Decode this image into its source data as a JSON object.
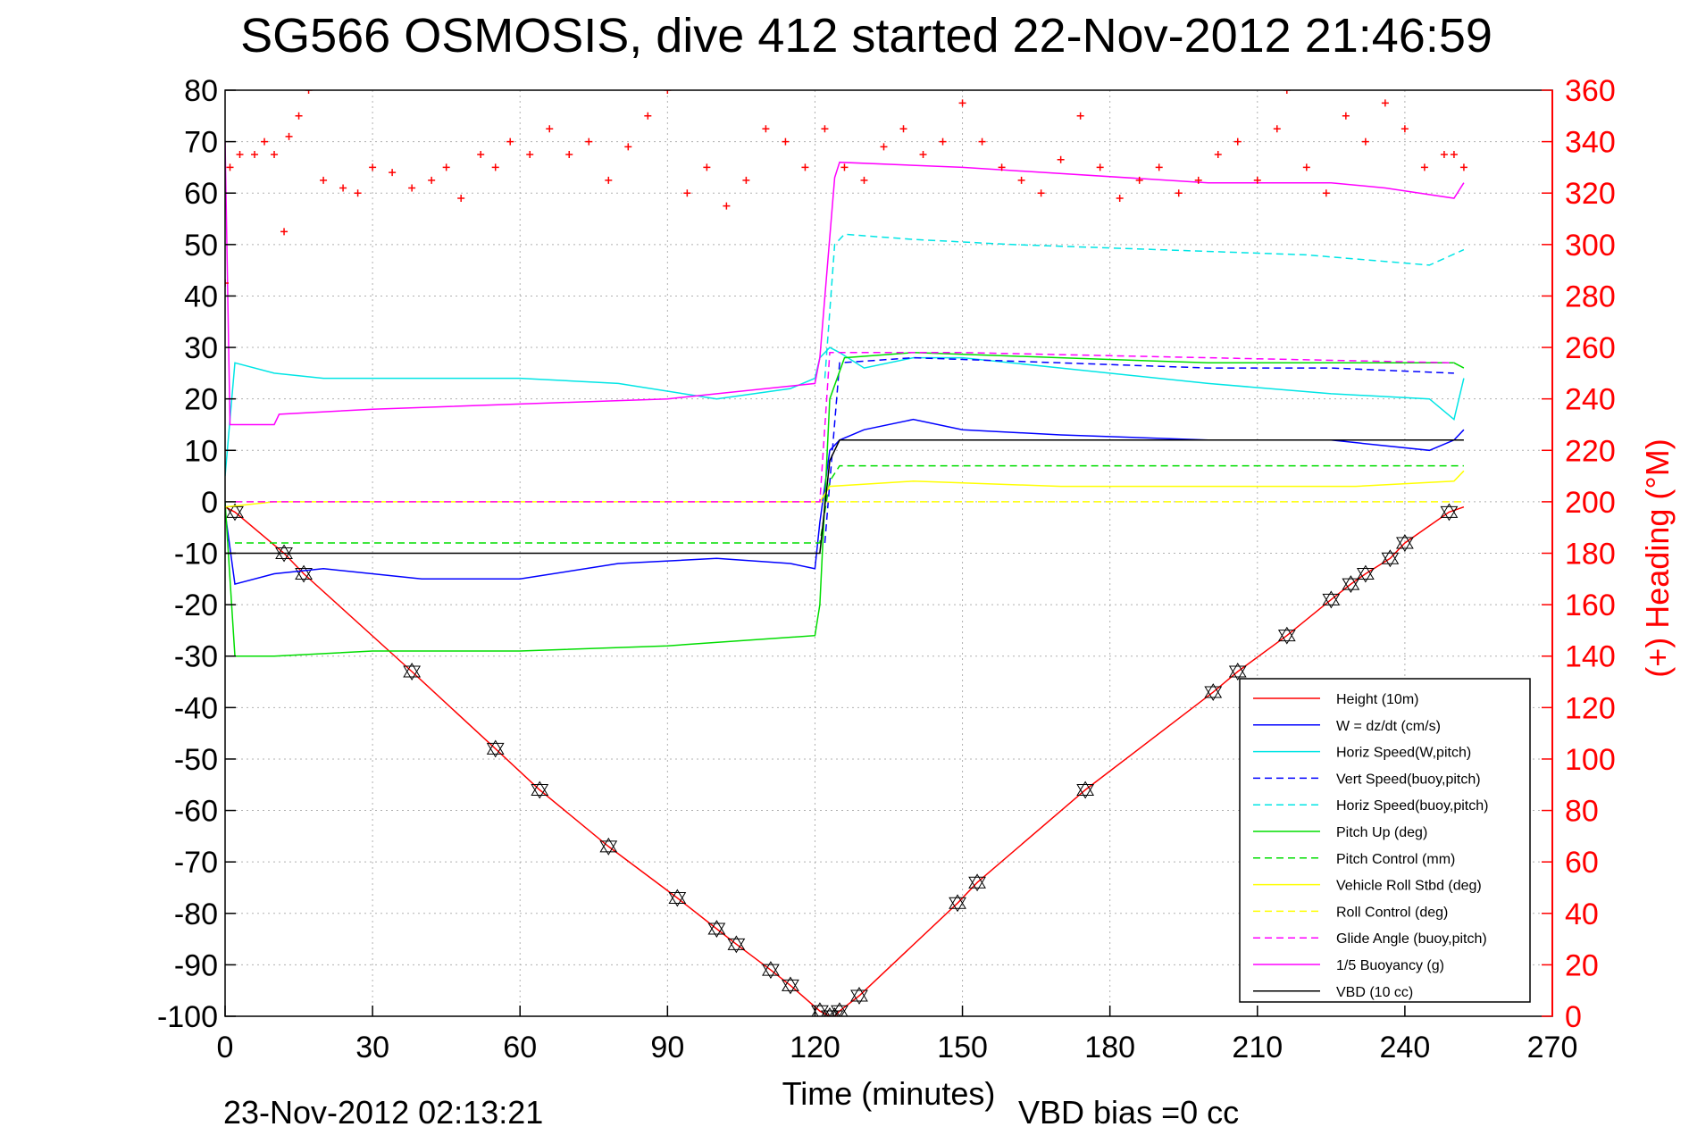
{
  "chart_data": {
    "type": "line",
    "title": "SG566 OSMOSIS, dive 412 started 22-Nov-2012 21:46:59",
    "xlabel": "Time (minutes)",
    "ylabel": "",
    "ylabel_right": "(+) Heading (°M)",
    "xlim": [
      0,
      270
    ],
    "ylim": [
      -100,
      80
    ],
    "ylim_right": [
      0,
      360
    ],
    "xticks": [
      0,
      30,
      60,
      90,
      120,
      150,
      180,
      210,
      240,
      270
    ],
    "yticks": [
      -100,
      -90,
      -80,
      -70,
      -60,
      -50,
      -40,
      -30,
      -20,
      -10,
      0,
      10,
      20,
      30,
      40,
      50,
      60,
      70,
      80
    ],
    "yticks_right": [
      0,
      20,
      40,
      60,
      80,
      100,
      120,
      140,
      160,
      180,
      200,
      220,
      240,
      260,
      280,
      300,
      320,
      340,
      360
    ],
    "grid": true,
    "legend_position": "lower-right",
    "footer_left": "23-Nov-2012 02:13:21",
    "footer_right": "VBD bias =0 cc",
    "series": [
      {
        "name": "Height (10m)",
        "color": "#ff0000",
        "style": "solid",
        "x": [
          0,
          2,
          12,
          16,
          38,
          55,
          64,
          78,
          92,
          100,
          104,
          111,
          115,
          121,
          123,
          124,
          125,
          129,
          149,
          153,
          175,
          201,
          206,
          216,
          225,
          229,
          232,
          237,
          240,
          249,
          252
        ],
        "y": [
          -1,
          -2,
          -10,
          -14,
          -33,
          -48,
          -56,
          -67,
          -77,
          -83,
          -86,
          -91,
          -94,
          -99,
          -100,
          -100,
          -99,
          -96,
          -78,
          -74,
          -56,
          -37,
          -33,
          -26,
          -19,
          -16,
          -14,
          -11,
          -8,
          -2,
          -1
        ]
      },
      {
        "name": "W = dz/dt (cm/s)",
        "color": "#0000ff",
        "style": "solid",
        "x": [
          0,
          2,
          10,
          20,
          40,
          60,
          80,
          100,
          115,
          120,
          121,
          123,
          125,
          130,
          140,
          150,
          170,
          200,
          225,
          245,
          250,
          252
        ],
        "y": [
          -2,
          -16,
          -14,
          -13,
          -15,
          -15,
          -12,
          -11,
          -12,
          -13,
          -4,
          10,
          12,
          14,
          16,
          14,
          13,
          12,
          12,
          10,
          12,
          14
        ]
      },
      {
        "name": "Horiz Speed(W,pitch)",
        "color": "#00e5e5",
        "style": "solid",
        "x": [
          0,
          2,
          10,
          20,
          40,
          60,
          80,
          100,
          115,
          120,
          121,
          123,
          125,
          130,
          140,
          150,
          170,
          200,
          225,
          245,
          250,
          252
        ],
        "y": [
          5,
          27,
          25,
          24,
          24,
          24,
          23,
          20,
          22,
          24,
          28,
          30,
          29,
          26,
          28,
          28,
          26,
          23,
          21,
          20,
          16,
          24
        ]
      },
      {
        "name": "Vert Speed(buoy,pitch)",
        "color": "#0000ff",
        "style": "dashed",
        "x": [
          122,
          125,
          140,
          170,
          200,
          225,
          250
        ],
        "y": [
          -8,
          27,
          28,
          27,
          26,
          26,
          25
        ]
      },
      {
        "name": "Horiz Speed(buoy,pitch)",
        "color": "#00e5e5",
        "style": "dashed",
        "x": [
          122,
          124,
          126,
          140,
          160,
          190,
          220,
          245,
          252
        ],
        "y": [
          24,
          50,
          52,
          51,
          50,
          49,
          48,
          46,
          49
        ]
      },
      {
        "name": "Pitch Up (deg)",
        "color": "#00dd00",
        "style": "solid",
        "x": [
          0,
          2,
          10,
          30,
          60,
          90,
          120,
          121,
          123,
          126,
          140,
          170,
          200,
          225,
          250,
          252
        ],
        "y": [
          0,
          -30,
          -30,
          -29,
          -29,
          -28,
          -26,
          -20,
          20,
          28,
          29,
          28,
          27,
          27,
          27,
          26
        ]
      },
      {
        "name": "Pitch Control (mm)",
        "color": "#00dd00",
        "style": "dashed",
        "x": [
          2,
          121,
          123,
          125,
          252
        ],
        "y": [
          -8,
          -8,
          4,
          7,
          7
        ]
      },
      {
        "name": "Vehicle Roll Stbd (deg)",
        "color": "#ffff00",
        "style": "solid",
        "x": [
          0,
          10,
          30,
          60,
          90,
          120,
          121,
          123,
          140,
          170,
          200,
          230,
          250,
          252
        ],
        "y": [
          -1,
          0,
          0,
          0,
          0,
          0,
          0,
          3,
          4,
          3,
          3,
          3,
          4,
          6
        ]
      },
      {
        "name": "Roll Control (deg)",
        "color": "#ffff00",
        "style": "dashed",
        "x": [
          2,
          121,
          123,
          252
        ],
        "y": [
          0,
          0,
          0,
          0
        ]
      },
      {
        "name": "Glide Angle (buoy,pitch)",
        "color": "#ff00ff",
        "style": "dashed",
        "x": [
          2,
          121,
          123,
          125,
          150,
          200,
          250
        ],
        "y": [
          0,
          0,
          29,
          29,
          29,
          28,
          27
        ]
      },
      {
        "name": "1/5 Buoyancy (g)",
        "color": "#ff00ff",
        "style": "solid",
        "x": [
          0,
          1,
          10,
          11,
          30,
          60,
          90,
          120,
          121,
          124,
          125,
          150,
          200,
          225,
          236,
          250,
          252
        ],
        "y": [
          70,
          15,
          15,
          17,
          18,
          19,
          20,
          23,
          28,
          63,
          66,
          65,
          62,
          62,
          61,
          59,
          62
        ]
      },
      {
        "name": "VBD (10 cc)",
        "color": "#000000",
        "style": "solid",
        "x": [
          0,
          2,
          121,
          123,
          125,
          252
        ],
        "y": [
          -10,
          -10,
          -10,
          8,
          12,
          12
        ]
      },
      {
        "name": "Heading",
        "color": "#ff0000",
        "style": "markers",
        "axis": "right",
        "x": [
          0,
          1,
          3,
          6,
          8,
          10,
          12,
          13,
          15,
          17,
          20,
          24,
          27,
          30,
          34,
          38,
          42,
          45,
          48,
          52,
          55,
          58,
          62,
          66,
          70,
          74,
          78,
          82,
          86,
          90,
          94,
          98,
          102,
          106,
          110,
          114,
          118,
          122,
          126,
          130,
          134,
          138,
          142,
          146,
          150,
          154,
          158,
          162,
          166,
          170,
          174,
          178,
          182,
          186,
          190,
          194,
          198,
          202,
          206,
          210,
          214,
          216,
          220,
          224,
          228,
          232,
          236,
          240,
          244,
          248,
          250,
          252
        ],
        "y": [
          285,
          330,
          335,
          335,
          340,
          335,
          305,
          342,
          350,
          360,
          325,
          322,
          320,
          330,
          328,
          322,
          325,
          330,
          318,
          335,
          330,
          340,
          335,
          345,
          335,
          340,
          325,
          338,
          350,
          360,
          320,
          330,
          315,
          325,
          345,
          340,
          330,
          345,
          330,
          325,
          338,
          345,
          335,
          340,
          355,
          340,
          330,
          325,
          320,
          333,
          350,
          330,
          318,
          325,
          330,
          320,
          325,
          335,
          340,
          325,
          345,
          360,
          330,
          320,
          350,
          340,
          355,
          345,
          330,
          335,
          335,
          330
        ]
      }
    ]
  }
}
